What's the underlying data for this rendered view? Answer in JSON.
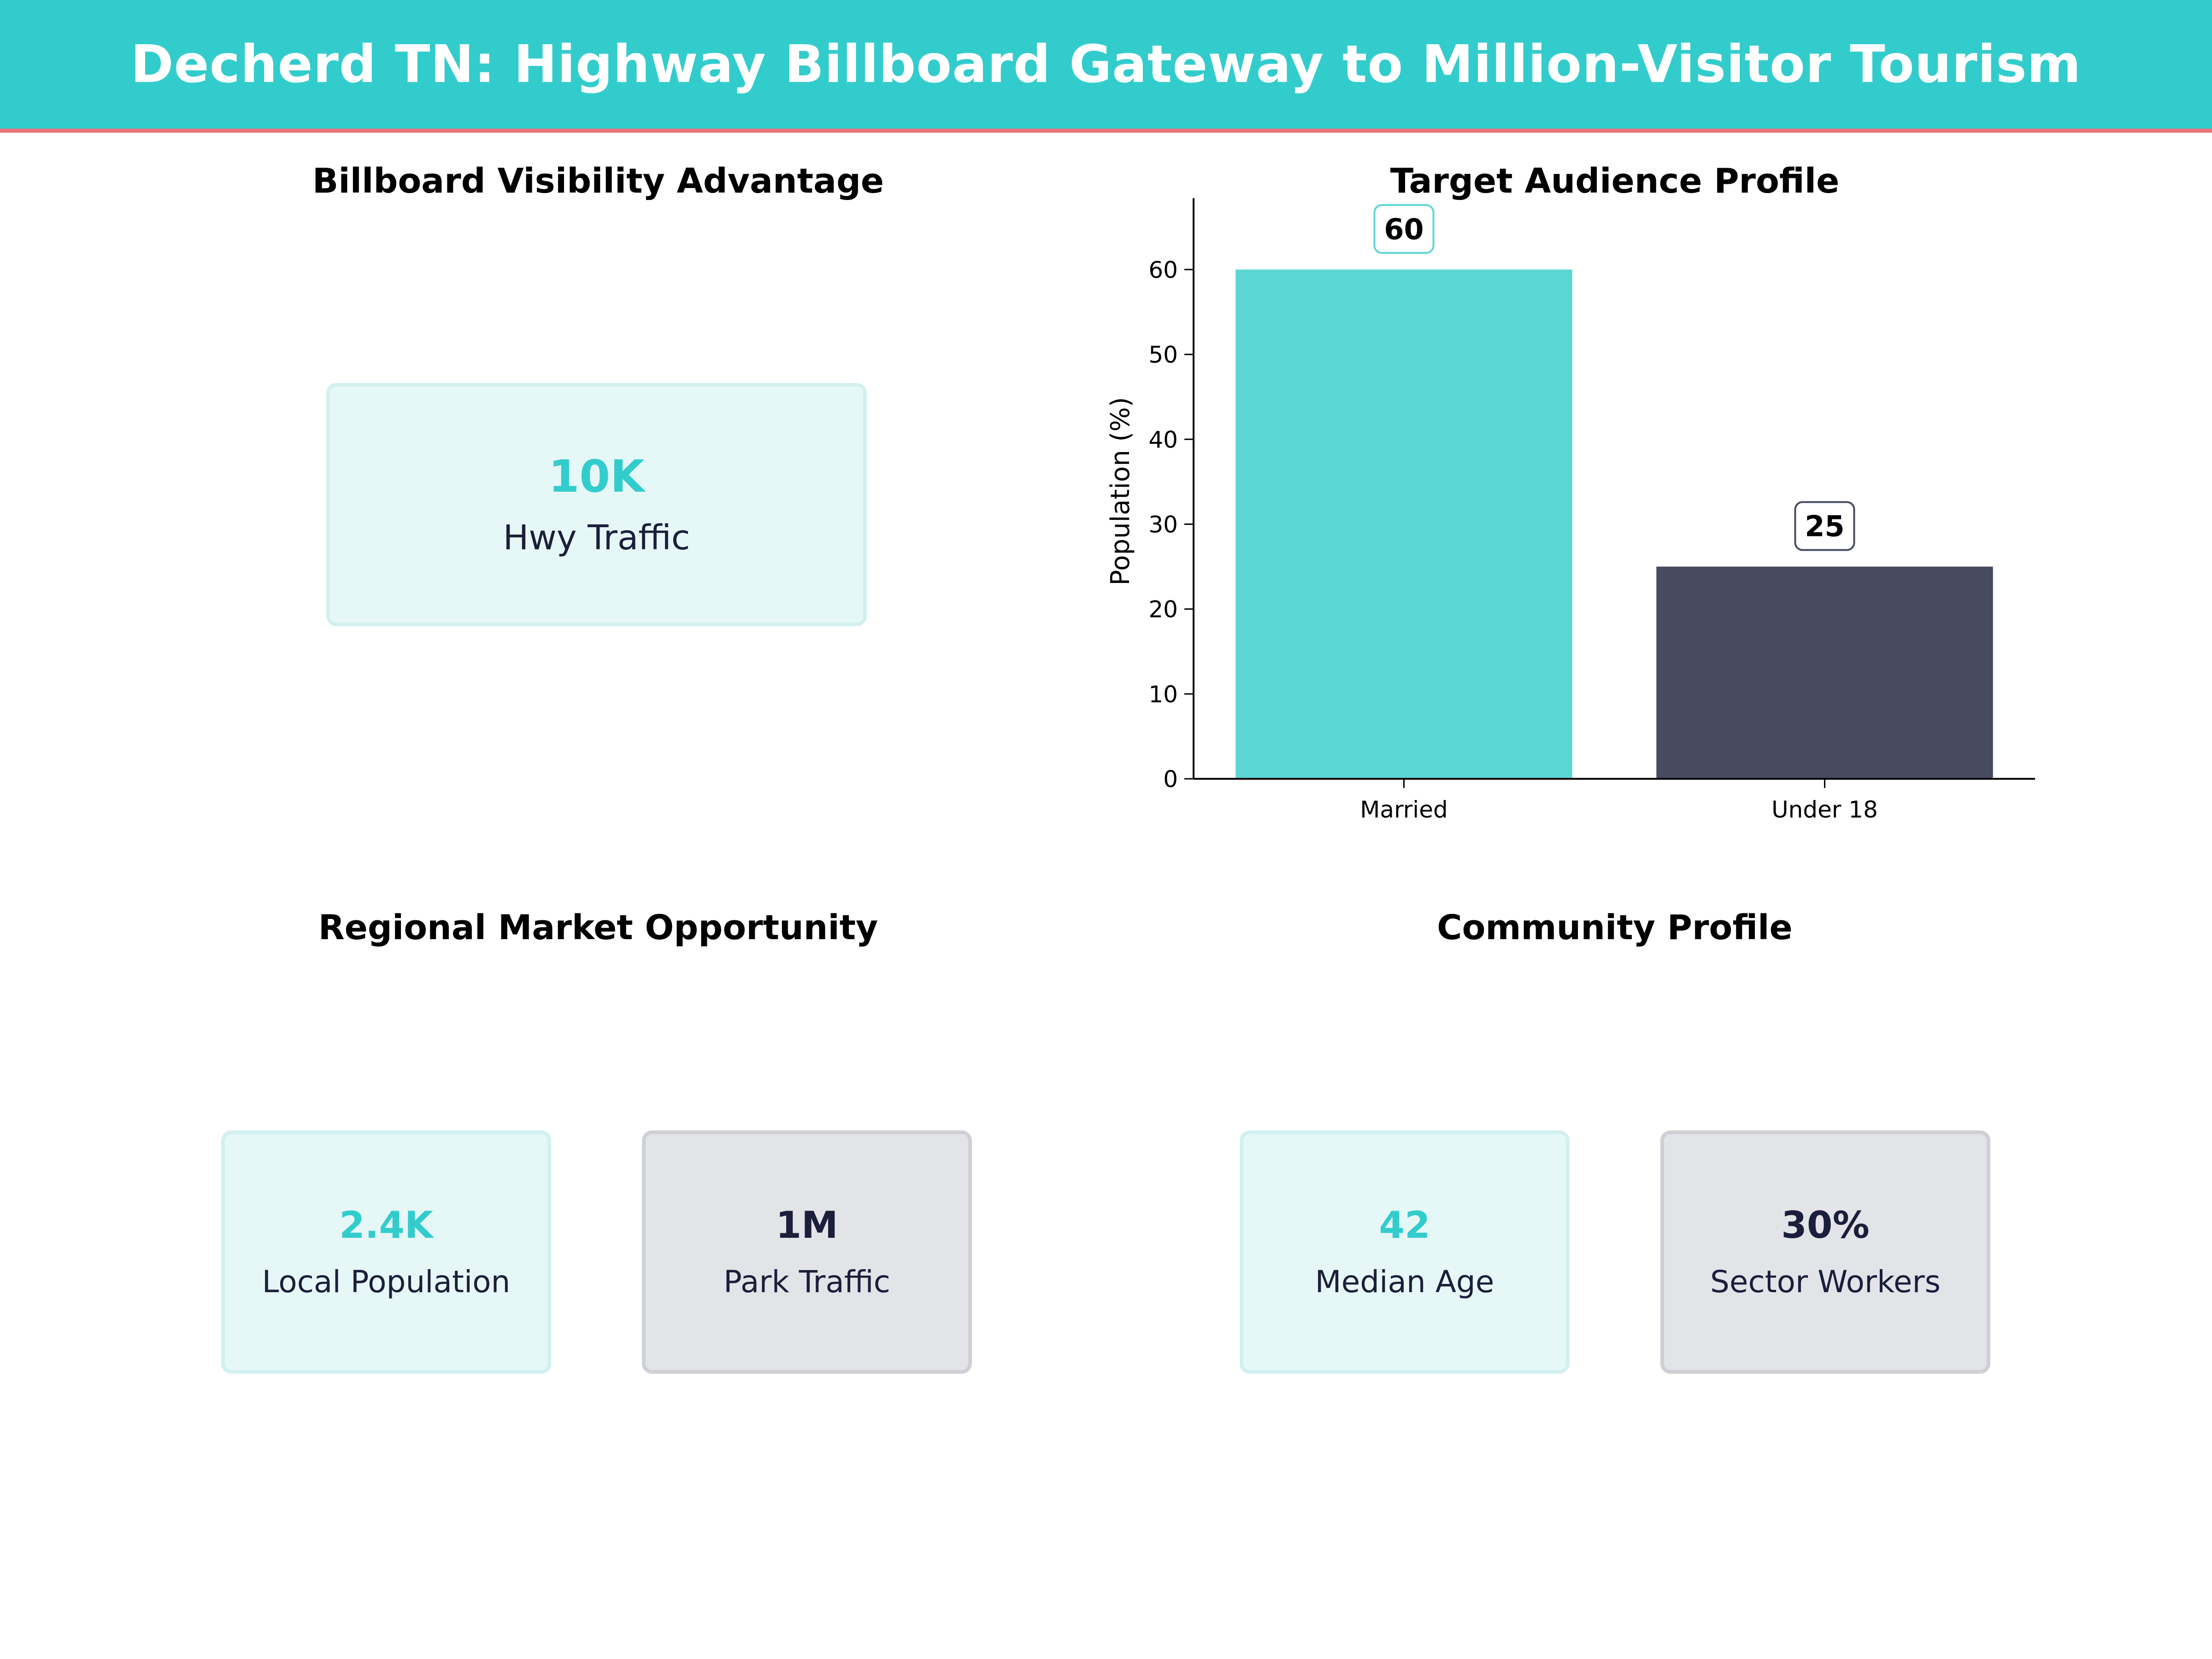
{
  "header": {
    "title": "Decherd TN: Highway Billboard Gateway to Million-Visitor Tourism",
    "background": "#33cccc",
    "accent_line": "#e8757a"
  },
  "panels": {
    "visibility": {
      "title": "Billboard Visibility Advantage",
      "card": {
        "value": "10K",
        "label": "Hwy Traffic"
      }
    },
    "audience": {
      "title": "Target Audience Profile"
    },
    "regional": {
      "title": "Regional Market Opportunity",
      "cards": [
        {
          "value": "2.4K",
          "label": "Local Population"
        },
        {
          "value": "1M",
          "label": "Park Traffic"
        }
      ]
    },
    "community": {
      "title": "Community Profile",
      "cards": [
        {
          "value": "42",
          "label": "Median Age"
        },
        {
          "value": "30%",
          "label": "Sector Workers"
        }
      ]
    }
  },
  "chart_data": {
    "type": "bar",
    "categories": [
      "Married",
      "Under 18"
    ],
    "values": [
      60,
      25
    ],
    "value_labels": [
      "60",
      "25"
    ],
    "colors": [
      "#5cd6d4",
      "#464b60"
    ],
    "label_border_colors": [
      "#5cd6d4",
      "#464b60"
    ],
    "ylabel": "Population (%)",
    "ylim": [
      0,
      64.5
    ],
    "yticks": [
      0,
      10,
      20,
      30,
      40,
      50,
      60
    ],
    "ytick_labels": [
      "0",
      "10",
      "20",
      "30",
      "40",
      "50",
      "60"
    ],
    "grid": false
  }
}
